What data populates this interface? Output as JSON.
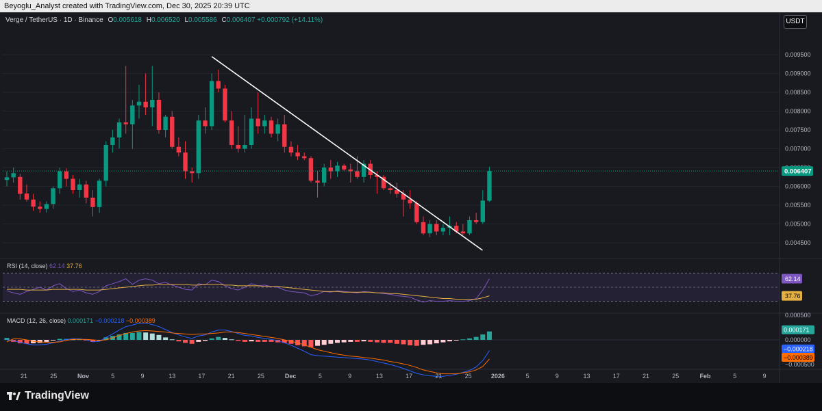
{
  "header": {
    "author_text": "Beyoglu_Analyst created with TradingView.com, Dec 30, 2025 20:39 UTC"
  },
  "legend": {
    "symbol": "Verge / TetherUS · 1D · Binance",
    "open_label": "O",
    "open": "0.005618",
    "high_label": "H",
    "high": "0.006520",
    "low_label": "L",
    "low": "0.005586",
    "close_label": "C",
    "close": "0.006407",
    "change": "+0.000792 (+14.11%)"
  },
  "currency": "USDT",
  "price_axis": {
    "ticks": [
      "0.009500",
      "0.009000",
      "0.008500",
      "0.008000",
      "0.007500",
      "0.007000",
      "0.006500",
      "0.006000",
      "0.005500",
      "0.005000",
      "0.004500"
    ],
    "last_price_label": "0.006407",
    "last_price_color": "#089981"
  },
  "rsi": {
    "legend_name": "RSI (14, close)",
    "value": "62.14",
    "ma_value": "37.76",
    "value_color": "#7e57c2",
    "ma_color": "#e4b042"
  },
  "macd": {
    "legend_name": "MACD (12, 26, close)",
    "hist": "0.000171",
    "macd": "−0.000218",
    "signal": "−0.000389",
    "axis_ticks": [
      "0.000500",
      "0.000000",
      "−0.000500"
    ],
    "hist_label": "0.000171",
    "macd_label": "−0.000218",
    "signal_label": "−0.000389",
    "macd_color": "#2962ff",
    "signal_color": "#ff6d00"
  },
  "time_axis": {
    "labels": [
      "21",
      "25",
      "Nov",
      "5",
      "9",
      "13",
      "17",
      "21",
      "25",
      "Dec",
      "5",
      "9",
      "13",
      "17",
      "21",
      "25",
      "2026",
      "5",
      "9",
      "13",
      "17",
      "21",
      "25",
      "Feb",
      "5",
      "9"
    ]
  },
  "colors": {
    "up": "#089981",
    "down": "#f23645",
    "trendline": "#ffffff"
  },
  "footer": {
    "brand": "TradingView"
  },
  "chart_data": {
    "type": "candlestick",
    "series_name": "Verge / TetherUS",
    "timeframe": "1D",
    "x_range": [
      "Oct 19 2025",
      "Dec 30 2025"
    ],
    "ylim": [
      0.0043,
      0.0097
    ],
    "candles": [
      {
        "d": "Oct 19",
        "o": 0.00617,
        "h": 0.0064,
        "l": 0.006,
        "c": 0.00624
      },
      {
        "d": "Oct 20",
        "o": 0.00624,
        "h": 0.0065,
        "l": 0.0061,
        "c": 0.00635
      },
      {
        "d": "Oct 21",
        "o": 0.00625,
        "h": 0.00633,
        "l": 0.00565,
        "c": 0.0058
      },
      {
        "d": "Oct 22",
        "o": 0.00581,
        "h": 0.00605,
        "l": 0.0056,
        "c": 0.00565
      },
      {
        "d": "Oct 23",
        "o": 0.00565,
        "h": 0.0058,
        "l": 0.00535,
        "c": 0.00546
      },
      {
        "d": "Oct 24",
        "o": 0.00546,
        "h": 0.0056,
        "l": 0.0053,
        "c": 0.0054
      },
      {
        "d": "Oct 25",
        "o": 0.0054,
        "h": 0.0056,
        "l": 0.0053,
        "c": 0.00553
      },
      {
        "d": "Oct 26",
        "o": 0.00553,
        "h": 0.006,
        "l": 0.0054,
        "c": 0.00595
      },
      {
        "d": "Oct 27",
        "o": 0.00595,
        "h": 0.0065,
        "l": 0.0058,
        "c": 0.0064
      },
      {
        "d": "Oct 28",
        "o": 0.0064,
        "h": 0.00648,
        "l": 0.006,
        "c": 0.0062
      },
      {
        "d": "Oct 29",
        "o": 0.0062,
        "h": 0.0063,
        "l": 0.0058,
        "c": 0.0059
      },
      {
        "d": "Oct 30",
        "o": 0.0059,
        "h": 0.0062,
        "l": 0.0057,
        "c": 0.00605
      },
      {
        "d": "Oct 31",
        "o": 0.00605,
        "h": 0.00615,
        "l": 0.00555,
        "c": 0.0057
      },
      {
        "d": "Nov 1",
        "o": 0.0057,
        "h": 0.0059,
        "l": 0.0052,
        "c": 0.00545
      },
      {
        "d": "Nov 2",
        "o": 0.00545,
        "h": 0.0062,
        "l": 0.0053,
        "c": 0.00615
      },
      {
        "d": "Nov 3",
        "o": 0.00615,
        "h": 0.0072,
        "l": 0.006,
        "c": 0.0071
      },
      {
        "d": "Nov 4",
        "o": 0.0071,
        "h": 0.0075,
        "l": 0.0069,
        "c": 0.0073
      },
      {
        "d": "Nov 5",
        "o": 0.0073,
        "h": 0.0078,
        "l": 0.007,
        "c": 0.0077
      },
      {
        "d": "Nov 6",
        "o": 0.0077,
        "h": 0.0092,
        "l": 0.0074,
        "c": 0.00765
      },
      {
        "d": "Nov 7",
        "o": 0.00765,
        "h": 0.0083,
        "l": 0.007,
        "c": 0.00815
      },
      {
        "d": "Nov 8",
        "o": 0.00815,
        "h": 0.0087,
        "l": 0.0078,
        "c": 0.00825
      },
      {
        "d": "Nov 9",
        "o": 0.00825,
        "h": 0.009,
        "l": 0.0079,
        "c": 0.0081
      },
      {
        "d": "Nov 10",
        "o": 0.0081,
        "h": 0.0092,
        "l": 0.0076,
        "c": 0.0083
      },
      {
        "d": "Nov 11",
        "o": 0.0083,
        "h": 0.0085,
        "l": 0.0074,
        "c": 0.0075
      },
      {
        "d": "Nov 12",
        "o": 0.0075,
        "h": 0.0079,
        "l": 0.0073,
        "c": 0.00785
      },
      {
        "d": "Nov 13",
        "o": 0.00785,
        "h": 0.008,
        "l": 0.007,
        "c": 0.00705
      },
      {
        "d": "Nov 14",
        "o": 0.00705,
        "h": 0.0073,
        "l": 0.0068,
        "c": 0.0069
      },
      {
        "d": "Nov 15",
        "o": 0.0069,
        "h": 0.0072,
        "l": 0.0062,
        "c": 0.0064
      },
      {
        "d": "Nov 16",
        "o": 0.0064,
        "h": 0.0065,
        "l": 0.0061,
        "c": 0.00635
      },
      {
        "d": "Nov 17",
        "o": 0.00635,
        "h": 0.0079,
        "l": 0.0062,
        "c": 0.00775
      },
      {
        "d": "Nov 18",
        "o": 0.00775,
        "h": 0.0081,
        "l": 0.0074,
        "c": 0.0076
      },
      {
        "d": "Nov 19",
        "o": 0.0076,
        "h": 0.009,
        "l": 0.0075,
        "c": 0.0088
      },
      {
        "d": "Nov 20",
        "o": 0.0088,
        "h": 0.0091,
        "l": 0.0085,
        "c": 0.0086
      },
      {
        "d": "Nov 21",
        "o": 0.0086,
        "h": 0.0087,
        "l": 0.0077,
        "c": 0.00775
      },
      {
        "d": "Nov 22",
        "o": 0.00775,
        "h": 0.008,
        "l": 0.007,
        "c": 0.0071
      },
      {
        "d": "Nov 23",
        "o": 0.0071,
        "h": 0.0076,
        "l": 0.0069,
        "c": 0.007
      },
      {
        "d": "Nov 24",
        "o": 0.007,
        "h": 0.0079,
        "l": 0.0069,
        "c": 0.0071
      },
      {
        "d": "Nov 25",
        "o": 0.0071,
        "h": 0.0081,
        "l": 0.007,
        "c": 0.0078
      },
      {
        "d": "Nov 26",
        "o": 0.0078,
        "h": 0.0085,
        "l": 0.0074,
        "c": 0.0076
      },
      {
        "d": "Nov 27",
        "o": 0.0076,
        "h": 0.0079,
        "l": 0.0074,
        "c": 0.00775
      },
      {
        "d": "Nov 28",
        "o": 0.00775,
        "h": 0.00785,
        "l": 0.0073,
        "c": 0.0074
      },
      {
        "d": "Nov 29",
        "o": 0.0074,
        "h": 0.0078,
        "l": 0.0072,
        "c": 0.00765
      },
      {
        "d": "Nov 30",
        "o": 0.00765,
        "h": 0.0079,
        "l": 0.0069,
        "c": 0.00705
      },
      {
        "d": "Dec 1",
        "o": 0.00705,
        "h": 0.0072,
        "l": 0.0068,
        "c": 0.0069
      },
      {
        "d": "Dec 2",
        "o": 0.0069,
        "h": 0.0071,
        "l": 0.0067,
        "c": 0.0068
      },
      {
        "d": "Dec 3",
        "o": 0.0068,
        "h": 0.0069,
        "l": 0.0067,
        "c": 0.00675
      },
      {
        "d": "Dec 4",
        "o": 0.00675,
        "h": 0.0068,
        "l": 0.0061,
        "c": 0.00615
      },
      {
        "d": "Dec 5",
        "o": 0.00615,
        "h": 0.0064,
        "l": 0.0057,
        "c": 0.0061
      },
      {
        "d": "Dec 6",
        "o": 0.0061,
        "h": 0.0066,
        "l": 0.006,
        "c": 0.0065
      },
      {
        "d": "Dec 7",
        "o": 0.0065,
        "h": 0.0067,
        "l": 0.0062,
        "c": 0.0064
      },
      {
        "d": "Dec 8",
        "o": 0.0064,
        "h": 0.00665,
        "l": 0.00625,
        "c": 0.00655
      },
      {
        "d": "Dec 9",
        "o": 0.00655,
        "h": 0.0066,
        "l": 0.0064,
        "c": 0.00645
      },
      {
        "d": "Dec 10",
        "o": 0.00645,
        "h": 0.0066,
        "l": 0.0061,
        "c": 0.0064
      },
      {
        "d": "Dec 11",
        "o": 0.0064,
        "h": 0.0068,
        "l": 0.0062,
        "c": 0.00625
      },
      {
        "d": "Dec 12",
        "o": 0.00625,
        "h": 0.0067,
        "l": 0.0061,
        "c": 0.0066
      },
      {
        "d": "Dec 13",
        "o": 0.0066,
        "h": 0.0067,
        "l": 0.0062,
        "c": 0.0063
      },
      {
        "d": "Dec 14",
        "o": 0.0063,
        "h": 0.0064,
        "l": 0.0058,
        "c": 0.00625
      },
      {
        "d": "Dec 15",
        "o": 0.00625,
        "h": 0.0063,
        "l": 0.0059,
        "c": 0.00595
      },
      {
        "d": "Dec 16",
        "o": 0.00595,
        "h": 0.0061,
        "l": 0.0058,
        "c": 0.0059
      },
      {
        "d": "Dec 17",
        "o": 0.0059,
        "h": 0.0061,
        "l": 0.0057,
        "c": 0.0058
      },
      {
        "d": "Dec 18",
        "o": 0.0058,
        "h": 0.0059,
        "l": 0.0052,
        "c": 0.00565
      },
      {
        "d": "Dec 19",
        "o": 0.00565,
        "h": 0.0059,
        "l": 0.0054,
        "c": 0.00555
      },
      {
        "d": "Dec 20",
        "o": 0.00555,
        "h": 0.0056,
        "l": 0.005,
        "c": 0.00505
      },
      {
        "d": "Dec 21",
        "o": 0.00505,
        "h": 0.0052,
        "l": 0.0047,
        "c": 0.00475
      },
      {
        "d": "Dec 22",
        "o": 0.00475,
        "h": 0.0051,
        "l": 0.00465,
        "c": 0.005
      },
      {
        "d": "Dec 23",
        "o": 0.005,
        "h": 0.0051,
        "l": 0.0047,
        "c": 0.0048
      },
      {
        "d": "Dec 24",
        "o": 0.0048,
        "h": 0.005,
        "l": 0.0047,
        "c": 0.0049
      },
      {
        "d": "Dec 25",
        "o": 0.0049,
        "h": 0.0052,
        "l": 0.0047,
        "c": 0.00495
      },
      {
        "d": "Dec 26",
        "o": 0.00495,
        "h": 0.00505,
        "l": 0.00475,
        "c": 0.0048
      },
      {
        "d": "Dec 27",
        "o": 0.0048,
        "h": 0.005,
        "l": 0.0047,
        "c": 0.00475
      },
      {
        "d": "Dec 28",
        "o": 0.00475,
        "h": 0.0052,
        "l": 0.0047,
        "c": 0.0051
      },
      {
        "d": "Dec 29",
        "o": 0.0051,
        "h": 0.0053,
        "l": 0.005,
        "c": 0.00505
      },
      {
        "d": "Dec 30",
        "o": 0.00505,
        "h": 0.0059,
        "l": 0.005,
        "c": 0.00562
      },
      {
        "d": "Dec 31",
        "o": 0.005618,
        "h": 0.00652,
        "l": 0.005586,
        "c": 0.006407
      }
    ],
    "trendline": {
      "start": {
        "d": "Nov 19",
        "price": 0.00945
      },
      "end": {
        "d": "Dec 31",
        "price": 0.0043
      }
    },
    "rsi_series": [
      45,
      42,
      40,
      44,
      47,
      50,
      46,
      52,
      55,
      48,
      44,
      46,
      42,
      40,
      44,
      52,
      55,
      58,
      62,
      54,
      60,
      62,
      60,
      55,
      57,
      53,
      50,
      47,
      46,
      55,
      53,
      60,
      58,
      52,
      48,
      46,
      50,
      55,
      52,
      53,
      51,
      50,
      46,
      44,
      43,
      42,
      38,
      40,
      44,
      43,
      45,
      44,
      43,
      42,
      44,
      43,
      42,
      41,
      40,
      38,
      37,
      36,
      32,
      29,
      31,
      30,
      30,
      31,
      30,
      30,
      31,
      34,
      46,
      62
    ],
    "rsi_ma_series": [
      47,
      47,
      47,
      46,
      46,
      46,
      46,
      47,
      47,
      47,
      47,
      47,
      46,
      46,
      46,
      47,
      48,
      49,
      50,
      51,
      52,
      53,
      53,
      54,
      54,
      54,
      54,
      54,
      53,
      53,
      54,
      54,
      54,
      53,
      53,
      52,
      52,
      52,
      52,
      51,
      51,
      51,
      50,
      49,
      48,
      47,
      46,
      45,
      44,
      44,
      44,
      43,
      43,
      43,
      43,
      43,
      42,
      42,
      41,
      41,
      40,
      39,
      38,
      37,
      36,
      35,
      34,
      34,
      33,
      33,
      33,
      33,
      35,
      37.76
    ],
    "macd_hist": [
      4e-05,
      -4e-05,
      -7e-05,
      -8e-05,
      -7e-05,
      -6e-05,
      -4e-05,
      -1e-05,
      2e-05,
      2e-05,
      1e-05,
      1e-05,
      -1e-05,
      -4e-05,
      -2e-05,
      5e-05,
      8e-05,
      0.00011,
      0.00014,
      0.00014,
      0.00016,
      0.00015,
      0.00013,
      0.0001,
      5e-05,
      1e-05,
      -3e-05,
      -6e-05,
      -8e-05,
      -4e-05,
      -2e-05,
      3e-05,
      6e-05,
      4e-05,
      1e-05,
      -2e-05,
      -4e-05,
      -3e-05,
      -4e-05,
      -4e-05,
      -4e-05,
      -5e-05,
      -6e-05,
      -8e-05,
      -0.00011,
      -0.00013,
      -0.00015,
      -0.00012,
      -0.0001,
      -8e-05,
      -6e-05,
      -5e-05,
      -4e-05,
      -4e-05,
      -3e-05,
      -4e-05,
      -5e-05,
      -6e-05,
      -6e-05,
      -8e-05,
      -9e-05,
      -0.00011,
      -0.00012,
      -0.0001,
      -9e-05,
      -7e-05,
      -5e-05,
      -3e-05,
      -1e-05,
      1e-05,
      3e-05,
      6e-05,
      0.00011,
      0.000171
    ],
    "macd_line": [
      0.0,
      -2e-05,
      -5e-05,
      -8e-05,
      -0.0001,
      -0.0001,
      -9e-05,
      -6e-05,
      -2e-05,
      1e-05,
      2e-05,
      2e-05,
      0.0,
      -4e-05,
      -3e-05,
      5e-05,
      0.00012,
      0.0002,
      0.00027,
      0.0003,
      0.00034,
      0.00034,
      0.00031,
      0.00027,
      0.00021,
      0.00015,
      0.0001,
      6e-05,
      3e-05,
      8e-05,
      0.0001,
      0.00016,
      0.0002,
      0.0002,
      0.00017,
      0.00013,
      9e-05,
      8e-05,
      5e-05,
      3e-05,
      1e-05,
      -2e-05,
      -6e-05,
      -0.00011,
      -0.00017,
      -0.00023,
      -0.0003,
      -0.00032,
      -0.00033,
      -0.00034,
      -0.00035,
      -0.00036,
      -0.00037,
      -0.00038,
      -0.00039,
      -0.00041,
      -0.00044,
      -0.00047,
      -0.0005,
      -0.00054,
      -0.00058,
      -0.00063,
      -0.00068,
      -0.00071,
      -0.00073,
      -0.00074,
      -0.00074,
      -0.00072,
      -0.0007,
      -0.00066,
      -0.00062,
      -0.00055,
      -0.00042,
      -0.000218
    ],
    "signal_line": [
      -4e-05,
      2e-05,
      2e-05,
      0.0,
      -3e-05,
      -4e-05,
      -5e-05,
      -5e-05,
      -4e-05,
      -1e-05,
      1e-05,
      1e-05,
      1e-05,
      0.0,
      -1e-05,
      0.0,
      4e-05,
      9e-05,
      0.00013,
      0.00016,
      0.00018,
      0.00019,
      0.00018,
      0.00017,
      0.00016,
      0.00014,
      0.00013,
      0.00012,
      0.00011,
      0.00012,
      0.00012,
      0.00013,
      0.00014,
      0.00016,
      0.00016,
      0.00015,
      0.00013,
      0.00011,
      9e-05,
      7e-05,
      5e-05,
      3e-05,
      0.0,
      -3e-05,
      -6e-05,
      -0.0001,
      -0.00015,
      -0.0002,
      -0.00023,
      -0.00026,
      -0.00029,
      -0.00031,
      -0.00033,
      -0.00034,
      -0.00036,
      -0.00037,
      -0.00039,
      -0.00041,
      -0.00044,
      -0.00046,
      -0.00049,
      -0.00052,
      -0.00056,
      -0.00061,
      -0.00064,
      -0.00067,
      -0.00069,
      -0.00069,
      -0.00069,
      -0.00067,
      -0.00065,
      -0.00061,
      -0.00054,
      -0.000389
    ]
  }
}
